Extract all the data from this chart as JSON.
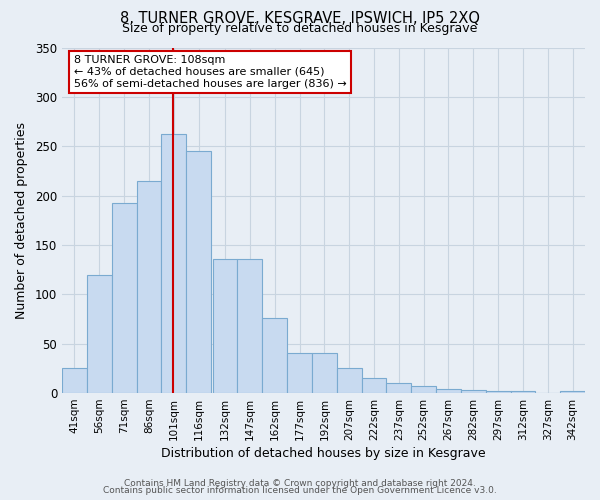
{
  "title": "8, TURNER GROVE, KESGRAVE, IPSWICH, IP5 2XQ",
  "subtitle": "Size of property relative to detached houses in Kesgrave",
  "xlabel": "Distribution of detached houses by size in Kesgrave",
  "ylabel": "Number of detached properties",
  "bar_labels": [
    "41sqm",
    "56sqm",
    "71sqm",
    "86sqm",
    "101sqm",
    "116sqm",
    "132sqm",
    "147sqm",
    "162sqm",
    "177sqm",
    "192sqm",
    "207sqm",
    "222sqm",
    "237sqm",
    "252sqm",
    "267sqm",
    "282sqm",
    "297sqm",
    "312sqm",
    "327sqm",
    "342sqm"
  ],
  "bar_values": [
    25,
    120,
    192,
    215,
    262,
    245,
    136,
    136,
    76,
    41,
    41,
    25,
    15,
    10,
    7,
    4,
    3,
    2,
    2,
    0,
    2
  ],
  "bar_color": "#c8daf0",
  "bar_edge_color": "#7aaad0",
  "vline_x": 108,
  "annotation_line1": "8 TURNER GROVE: 108sqm",
  "annotation_line2": "← 43% of detached houses are smaller (645)",
  "annotation_line3": "56% of semi-detached houses are larger (836) →",
  "annotation_box_color": "#ffffff",
  "annotation_box_edge_color": "#cc0000",
  "ylim": [
    0,
    350
  ],
  "yticks": [
    0,
    50,
    100,
    150,
    200,
    250,
    300,
    350
  ],
  "footer_line1": "Contains HM Land Registry data © Crown copyright and database right 2024.",
  "footer_line2": "Contains public sector information licensed under the Open Government Licence v3.0.",
  "background_color": "#e8eef5",
  "grid_color": "#c8d4e0",
  "bin_width": 15,
  "bin_starts": [
    41,
    56,
    71,
    86,
    101,
    116,
    132,
    147,
    162,
    177,
    192,
    207,
    222,
    237,
    252,
    267,
    282,
    297,
    312,
    327,
    342
  ]
}
